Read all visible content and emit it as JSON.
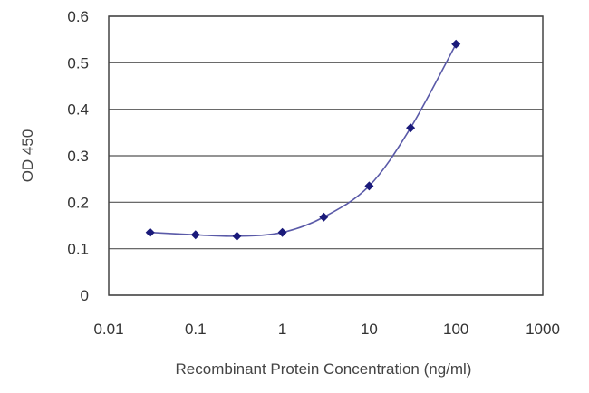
{
  "chart_data": {
    "type": "line",
    "title": "",
    "xlabel": "Recombinant Protein Concentration (ng/ml)",
    "ylabel": "OD 450",
    "x_scale": "log",
    "xlim": [
      0.01,
      1000
    ],
    "ylim": [
      0,
      0.6
    ],
    "x_ticks": [
      "0.01",
      "0.1",
      "1",
      "10",
      "100",
      "1000"
    ],
    "y_ticks": [
      "0",
      "0.1",
      "0.2",
      "0.3",
      "0.4",
      "0.5",
      "0.6"
    ],
    "grid": "horizontal",
    "legend": "none",
    "series": [
      {
        "x": [
          0.03,
          0.1,
          0.3,
          1,
          3,
          10,
          30,
          100
        ],
        "y": [
          0.135,
          0.13,
          0.127,
          0.135,
          0.168,
          0.235,
          0.36,
          0.54
        ],
        "color": "#1a1a7a",
        "line_color": "#5a5aa8"
      }
    ]
  }
}
